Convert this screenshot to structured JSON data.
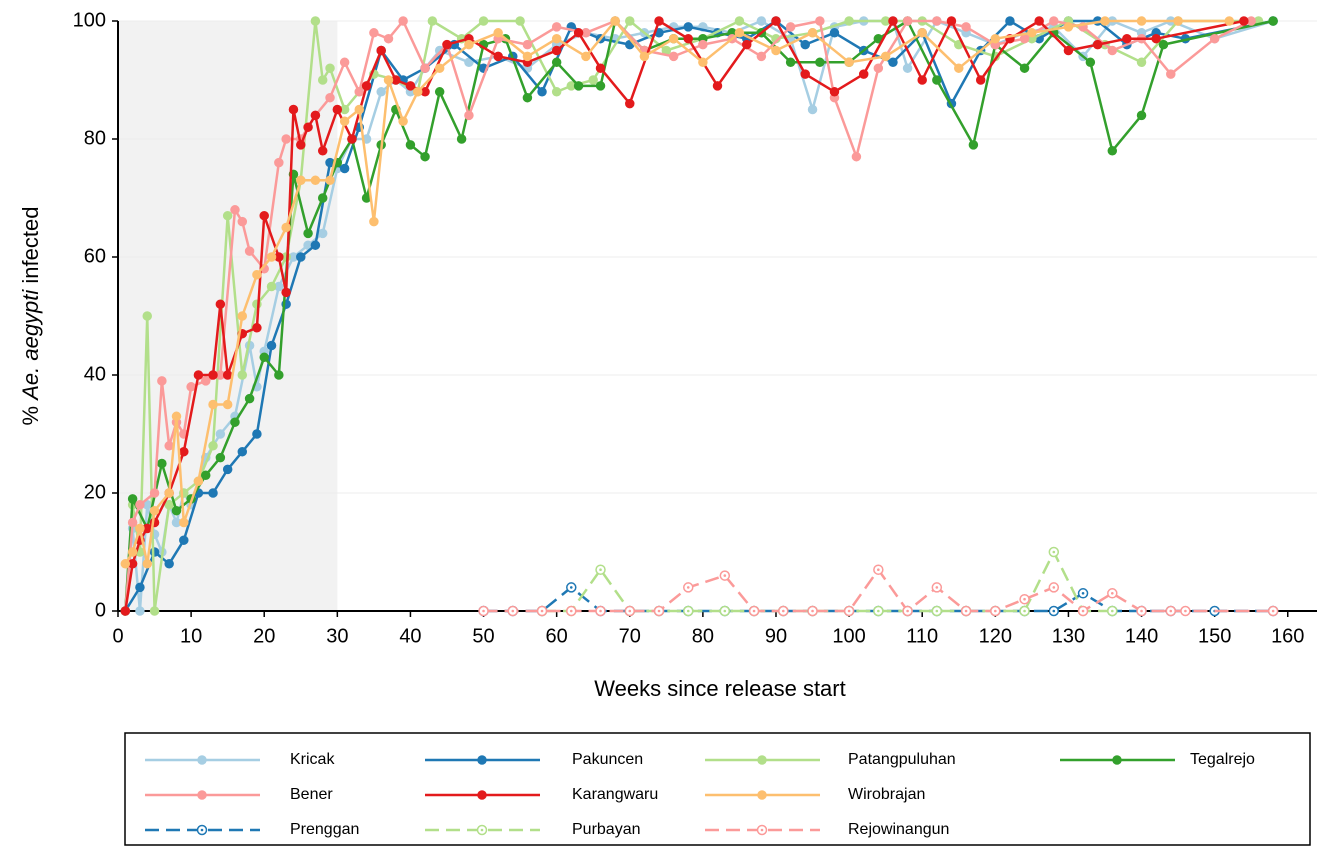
{
  "chart_data": {
    "type": "line",
    "xlabel": "Weeks since release start",
    "ylabel": [
      "%",
      "Ae. aegypti",
      "infected"
    ],
    "xlim": [
      0,
      164
    ],
    "ylim": [
      0,
      100
    ],
    "xticks": [
      0,
      10,
      20,
      30,
      40,
      50,
      60,
      70,
      80,
      90,
      100,
      110,
      120,
      130,
      140,
      150,
      160
    ],
    "yticks": [
      0,
      20,
      40,
      60,
      80,
      100
    ],
    "grid": true,
    "shaded_xrange": [
      0,
      30
    ],
    "series": [
      {
        "name": "Kricak",
        "color": "#a6cee3",
        "dashed": false,
        "x": [
          1,
          2,
          3,
          4,
          5,
          6,
          7,
          8,
          9,
          10,
          12,
          14,
          16,
          18,
          19,
          20,
          22,
          24,
          26,
          28,
          30,
          32,
          34,
          36,
          38,
          40,
          42,
          44,
          48,
          52,
          56,
          60,
          64,
          68,
          72,
          76,
          80,
          84,
          88,
          92,
          95,
          98,
          102,
          106,
          108,
          112,
          116,
          120,
          124,
          128,
          132,
          136,
          140,
          144,
          150,
          158
        ],
        "values": [
          0,
          14,
          0,
          18,
          13,
          10,
          18,
          15,
          20,
          18,
          26,
          30,
          33,
          45,
          38,
          44,
          55,
          60,
          62,
          64,
          75,
          80,
          80,
          88,
          90,
          88,
          92,
          95,
          93,
          94,
          92,
          96,
          98,
          97,
          98,
          99,
          99,
          98,
          100,
          97,
          85,
          99,
          100,
          100,
          92,
          100,
          98,
          96,
          98,
          99,
          94,
          100,
          98,
          100,
          97,
          100
        ]
      },
      {
        "name": "Pakuncen",
        "color": "#1f78b4",
        "dashed": false,
        "x": [
          1,
          3,
          5,
          7,
          9,
          11,
          13,
          15,
          17,
          19,
          21,
          23,
          25,
          27,
          29,
          31,
          33,
          36,
          39,
          42,
          46,
          50,
          54,
          58,
          62,
          66,
          70,
          74,
          78,
          82,
          86,
          90,
          94,
          98,
          102,
          106,
          110,
          114,
          118,
          122,
          126,
          130,
          134,
          138,
          142,
          146,
          158
        ],
        "values": [
          0,
          4,
          10,
          8,
          12,
          20,
          20,
          24,
          27,
          30,
          45,
          52,
          60,
          62,
          76,
          75,
          82,
          95,
          90,
          92,
          96,
          92,
          94,
          88,
          99,
          97,
          96,
          98,
          99,
          98,
          97,
          100,
          96,
          98,
          95,
          93,
          98,
          86,
          95,
          100,
          97,
          100,
          100,
          96,
          98,
          97,
          100
        ]
      },
      {
        "name": "Patangpuluhan",
        "color": "#b2df8a",
        "dashed": false,
        "x": [
          1,
          2,
          3,
          4,
          5,
          7,
          9,
          11,
          13,
          15,
          17,
          19,
          21,
          23,
          25,
          27,
          28,
          29,
          31,
          33,
          35,
          38,
          41,
          43,
          47,
          50,
          55,
          60,
          62,
          65,
          70,
          75,
          80,
          85,
          90,
          95,
          100,
          105,
          110,
          115,
          120,
          125,
          130,
          135,
          140,
          145,
          156
        ],
        "values": [
          0,
          18,
          10,
          50,
          0,
          18,
          20,
          22,
          28,
          67,
          40,
          52,
          55,
          60,
          73,
          100,
          90,
          92,
          85,
          88,
          91,
          90,
          88,
          100,
          97,
          100,
          100,
          88,
          89,
          90,
          100,
          95,
          97,
          100,
          97,
          98,
          100,
          100,
          100,
          96,
          94,
          97,
          100,
          96,
          93,
          100,
          100
        ]
      },
      {
        "name": "Tegalrejo",
        "color": "#33a02c",
        "dashed": false,
        "x": [
          1,
          2,
          4,
          6,
          8,
          10,
          12,
          14,
          16,
          18,
          20,
          22,
          24,
          26,
          28,
          30,
          32,
          34,
          36,
          38,
          40,
          42,
          44,
          47,
          50,
          53,
          56,
          60,
          63,
          66,
          68,
          72,
          76,
          80,
          84,
          88,
          92,
          96,
          100,
          104,
          108,
          112,
          117,
          120,
          124,
          128,
          133,
          136,
          140,
          143,
          158
        ],
        "values": [
          0,
          19,
          14,
          25,
          17,
          19,
          23,
          26,
          32,
          36,
          43,
          40,
          74,
          64,
          70,
          76,
          80,
          70,
          79,
          85,
          79,
          77,
          88,
          80,
          96,
          97,
          87,
          93,
          89,
          89,
          100,
          95,
          97,
          97,
          98,
          98,
          93,
          93,
          93,
          97,
          100,
          90,
          79,
          96,
          92,
          98,
          93,
          78,
          84,
          96,
          100
        ]
      },
      {
        "name": "Bener",
        "color": "#fb9a99",
        "dashed": false,
        "x": [
          1,
          2,
          3,
          5,
          6,
          7,
          8,
          9,
          10,
          12,
          14,
          16,
          17,
          18,
          20,
          22,
          23,
          25,
          27,
          29,
          31,
          33,
          35,
          37,
          39,
          42,
          45,
          48,
          52,
          56,
          60,
          64,
          68,
          72,
          76,
          80,
          84,
          88,
          92,
          96,
          98,
          101,
          104,
          108,
          112,
          116,
          120,
          124,
          128,
          132,
          136,
          140,
          144,
          150,
          155
        ],
        "values": [
          0,
          15,
          18,
          20,
          39,
          28,
          32,
          30,
          38,
          39,
          40,
          68,
          66,
          61,
          58,
          76,
          80,
          80,
          84,
          87,
          93,
          88,
          98,
          97,
          100,
          92,
          96,
          84,
          97,
          96,
          99,
          98,
          100,
          95,
          94,
          96,
          97,
          94,
          99,
          100,
          87,
          77,
          92,
          100,
          100,
          99,
          96,
          97,
          100,
          99,
          95,
          97,
          91,
          97,
          100
        ]
      },
      {
        "name": "Karangwaru",
        "color": "#e31a1c",
        "dashed": false,
        "x": [
          1,
          2,
          3,
          4,
          5,
          7,
          9,
          11,
          13,
          14,
          15,
          17,
          19,
          20,
          22,
          23,
          24,
          25,
          26,
          27,
          28,
          30,
          32,
          34,
          36,
          38,
          40,
          42,
          45,
          48,
          52,
          56,
          60,
          63,
          66,
          70,
          74,
          78,
          82,
          86,
          90,
          94,
          98,
          102,
          106,
          110,
          114,
          118,
          122,
          126,
          130,
          134,
          138,
          142,
          154
        ],
        "values": [
          0,
          8,
          12,
          14,
          15,
          20,
          27,
          40,
          40,
          52,
          40,
          47,
          48,
          67,
          60,
          54,
          85,
          79,
          82,
          84,
          78,
          85,
          80,
          89,
          95,
          90,
          89,
          88,
          96,
          97,
          94,
          93,
          95,
          98,
          92,
          86,
          100,
          97,
          89,
          96,
          100,
          91,
          88,
          91,
          100,
          90,
          100,
          90,
          97,
          100,
          95,
          96,
          97,
          97,
          100
        ]
      },
      {
        "name": "Wirobrajan",
        "color": "#fdbf6f",
        "dashed": false,
        "x": [
          1,
          2,
          3,
          4,
          5,
          7,
          8,
          9,
          11,
          13,
          15,
          17,
          19,
          21,
          23,
          25,
          27,
          29,
          31,
          33,
          35,
          37,
          39,
          41,
          44,
          48,
          52,
          56,
          60,
          64,
          68,
          72,
          76,
          80,
          85,
          90,
          95,
          100,
          105,
          110,
          115,
          120,
          125,
          130,
          135,
          140,
          145,
          152
        ],
        "values": [
          8,
          10,
          14,
          8,
          17,
          20,
          33,
          15,
          22,
          35,
          35,
          50,
          57,
          60,
          65,
          73,
          73,
          73,
          83,
          85,
          66,
          90,
          83,
          88,
          92,
          96,
          98,
          94,
          97,
          94,
          100,
          94,
          97,
          93,
          98,
          95,
          98,
          93,
          94,
          98,
          92,
          97,
          98,
          99,
          100,
          100,
          100,
          100
        ]
      },
      {
        "name": "Prenggan",
        "color": "#1f78b4",
        "dashed": true,
        "x": [
          50,
          54,
          58,
          62,
          66,
          70,
          74,
          78,
          83,
          87,
          91,
          95,
          100,
          104,
          108,
          112,
          116,
          120,
          124,
          128,
          132,
          136,
          140,
          144,
          150,
          158
        ],
        "values": [
          0,
          0,
          0,
          4,
          0,
          0,
          0,
          0,
          0,
          0,
          0,
          0,
          0,
          0,
          0,
          0,
          0,
          0,
          0,
          0,
          3,
          0,
          0,
          0,
          0,
          0
        ]
      },
      {
        "name": "Purbayan",
        "color": "#b2df8a",
        "dashed": true,
        "x": [
          58,
          62,
          66,
          70,
          74,
          78,
          83,
          87,
          91,
          95,
          100,
          104,
          108,
          112,
          116,
          120,
          124,
          128,
          132,
          136
        ],
        "values": [
          0,
          0,
          7,
          0,
          0,
          0,
          0,
          0,
          0,
          0,
          0,
          0,
          0,
          0,
          0,
          0,
          0,
          10,
          0,
          0
        ]
      },
      {
        "name": "Rejowinangun",
        "color": "#fb9a99",
        "dashed": true,
        "x": [
          50,
          54,
          58,
          62,
          66,
          70,
          74,
          78,
          83,
          87,
          91,
          95,
          100,
          104,
          108,
          112,
          116,
          120,
          124,
          128,
          132,
          136,
          140,
          144,
          146,
          158
        ],
        "values": [
          0,
          0,
          0,
          0,
          0,
          0,
          0,
          4,
          6,
          0,
          0,
          0,
          0,
          7,
          0,
          4,
          0,
          0,
          2,
          4,
          0,
          3,
          0,
          0,
          0,
          0
        ]
      }
    ]
  }
}
